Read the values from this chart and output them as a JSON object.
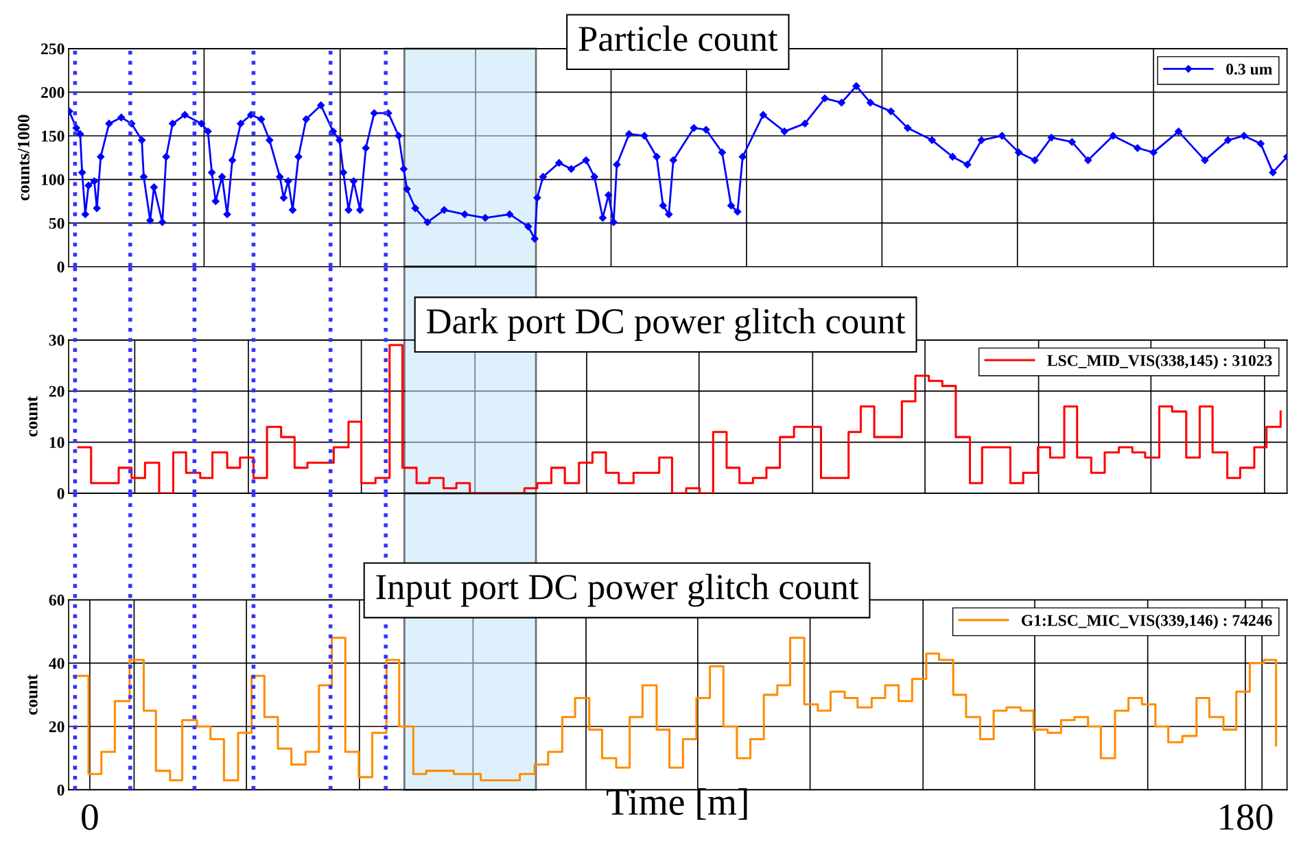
{
  "chart_data": [
    {
      "type": "line",
      "title": "Particle count",
      "ylabel": "counts/1000",
      "xlim": [
        -3.3,
        186.5
      ],
      "ylim": [
        0,
        250
      ],
      "yticks": [
        0,
        50,
        100,
        150,
        200,
        250
      ],
      "xticks": [
        {
          "value": 17.8,
          "label": null
        },
        {
          "value": 39.0,
          "label": null
        },
        {
          "value": 60.1,
          "label": null
        },
        {
          "value": 81.2,
          "label": null
        },
        {
          "value": 102.3,
          "label": null
        },
        {
          "value": 123.4,
          "label": null
        },
        {
          "value": 144.5,
          "label": null
        },
        {
          "value": 165.7,
          "label": null
        }
      ],
      "tick_labels": "y",
      "grid": true,
      "legend": "top right",
      "marker": "diamond",
      "x": [
        -3.2,
        -2.1,
        -1.5,
        -1.2,
        -0.7,
        -0.2,
        0.7,
        1.1,
        1.7,
        3.0,
        4.9,
        6.5,
        8.1,
        8.4,
        9.4,
        10.0,
        11.3,
        11.9,
        12.9,
        14.8,
        17.4,
        18.4,
        19.0,
        19.6,
        20.6,
        21.4,
        22.2,
        23.5,
        25.1,
        26.7,
        28.0,
        29.6,
        30.2,
        30.9,
        31.6,
        32.5,
        33.7,
        36.0,
        37.9,
        38.9,
        39.5,
        40.3,
        41.1,
        42.1,
        43.0,
        44.3,
        46.5,
        48.1,
        48.9,
        49.4,
        50.7,
        52.6,
        55.2,
        58.4,
        61.6,
        65.4,
        68.3,
        69.3,
        69.7,
        70.6,
        73.1,
        75.0,
        77.3,
        78.6,
        79.9,
        80.8,
        81.6,
        82.1,
        84.0,
        86.4,
        88.3,
        89.3,
        90.2,
        90.9,
        94.1,
        96.0,
        98.5,
        99.9,
        100.9,
        101.7,
        104.9,
        108.2,
        111.4,
        114.5,
        117.1,
        119.4,
        121.6,
        124.8,
        127.4,
        131.2,
        134.4,
        136.7,
        138.9,
        142.1,
        144.7,
        147.2,
        149.8,
        153.0,
        155.5,
        159.4,
        163.2,
        165.7,
        169.6,
        173.7,
        177.3,
        179.8,
        182.4,
        184.3,
        186.5
      ],
      "series": [
        {
          "name": "0.3 um",
          "color": "#0000ff",
          "values": [
            178,
            159,
            152,
            108,
            60,
            93,
            98,
            67,
            126,
            164,
            171,
            164,
            145,
            103,
            53,
            91,
            51,
            126,
            164,
            174,
            164,
            155,
            108,
            75,
            103,
            60,
            122,
            164,
            174,
            169,
            145,
            103,
            79,
            98,
            65,
            126,
            169,
            185,
            155,
            145,
            108,
            65,
            98,
            65,
            136,
            176,
            176,
            150,
            112,
            89,
            67,
            51,
            65,
            60,
            56,
            60,
            46,
            32,
            79,
            103,
            119,
            112,
            122,
            103,
            56,
            82,
            51,
            117,
            152,
            150,
            126,
            70,
            60,
            122,
            159,
            157,
            131,
            70,
            63,
            126,
            174,
            155,
            164,
            193,
            188,
            207,
            188,
            178,
            159,
            145,
            126,
            117,
            145,
            150,
            131,
            122,
            148,
            143,
            122,
            150,
            136,
            131,
            155,
            122,
            145,
            150,
            141,
            108,
            126
          ]
        }
      ],
      "bands": [
        {
          "axis": "x",
          "from": 49.0,
          "to": 69.5,
          "color": "#c2e4f8"
        }
      ],
      "ref_lines": [
        {
          "axis": "x",
          "value": -2.3,
          "color": "#3333ff",
          "line_style": "dotted"
        },
        {
          "axis": "x",
          "value": 6.3,
          "color": "#3333ff",
          "line_style": "dotted"
        },
        {
          "axis": "x",
          "value": 16.3,
          "color": "#3333ff",
          "line_style": "dotted"
        },
        {
          "axis": "x",
          "value": 25.5,
          "color": "#3333ff",
          "line_style": "dotted"
        },
        {
          "axis": "x",
          "value": 37.5,
          "color": "#3333ff",
          "line_style": "dotted"
        },
        {
          "axis": "x",
          "value": 46.1,
          "color": "#3333ff",
          "line_style": "dotted"
        }
      ]
    },
    {
      "type": "step",
      "title": "Dark port DC power glitch count",
      "ylabel": "count",
      "xlim": [
        -3.3,
        186.5
      ],
      "ylim": [
        0,
        30
      ],
      "yticks": [
        0,
        10,
        20,
        30
      ],
      "xticks": [
        {
          "value": 7.0,
          "label": null
        },
        {
          "value": 24.7,
          "label": null
        },
        {
          "value": 42.3,
          "label": null
        },
        {
          "value": 60.0,
          "label": null
        },
        {
          "value": 77.4,
          "label": null
        },
        {
          "value": 94.9,
          "label": null
        },
        {
          "value": 112.6,
          "label": null
        },
        {
          "value": 130.1,
          "label": null
        },
        {
          "value": 147.8,
          "label": null
        },
        {
          "value": 165.3,
          "label": null
        },
        {
          "value": 183.0,
          "label": null
        }
      ],
      "tick_labels": "y",
      "grid": true,
      "legend": "top right",
      "x": [
        -1.8,
        0.2,
        4.5,
        6.5,
        8.6,
        10.8,
        13.0,
        15.0,
        17.2,
        19.1,
        21.4,
        23.4,
        25.5,
        27.6,
        29.8,
        31.9,
        33.9,
        38.0,
        40.3,
        42.3,
        44.5,
        46.7,
        48.7,
        50.9,
        52.9,
        55.1,
        57.1,
        59.2,
        67.7,
        69.7,
        71.9,
        74.0,
        76.2,
        78.3,
        80.4,
        82.4,
        84.7,
        88.7,
        90.7,
        92.9,
        95.0,
        97.1,
        99.2,
        101.2,
        103.3,
        105.4,
        107.5,
        109.7,
        113.9,
        118.2,
        120.1,
        122.2,
        126.5,
        128.6,
        130.7,
        132.8,
        134.9,
        137.1,
        139.0,
        143.4,
        145.4,
        147.7,
        149.6,
        151.8,
        153.8,
        156.0,
        158.1,
        160.3,
        162.4,
        164.4,
        166.6,
        168.6,
        170.8,
        172.9,
        174.9,
        177.2,
        179.2,
        181.4,
        183.3,
        185.5
      ],
      "series": [
        {
          "name": "LSC_MID_VIS(338,145) : 31023",
          "color": "#ff0000",
          "values": [
            9,
            2,
            5,
            3,
            6,
            0,
            8,
            4,
            3,
            8,
            5,
            7,
            3,
            13,
            11,
            5,
            6,
            9,
            14,
            2,
            3,
            29,
            5,
            2,
            3,
            1,
            2,
            0,
            1,
            2,
            5,
            2,
            6,
            8,
            4,
            2,
            4,
            7,
            0,
            1,
            0,
            12,
            5,
            2,
            3,
            5,
            11,
            13,
            3,
            12,
            17,
            11,
            18,
            23,
            22,
            21,
            11,
            2,
            9,
            2,
            4,
            9,
            7,
            17,
            7,
            4,
            8,
            9,
            8,
            7,
            17,
            16,
            7,
            17,
            8,
            3,
            5,
            9,
            13,
            16
          ]
        }
      ],
      "bands": [
        {
          "axis": "x",
          "from": 49.0,
          "to": 69.5,
          "color": "#c2e4f8"
        }
      ],
      "ref_lines": [
        {
          "axis": "x",
          "value": -2.3,
          "color": "#3333ff",
          "line_style": "dotted"
        },
        {
          "axis": "x",
          "value": 6.3,
          "color": "#3333ff",
          "line_style": "dotted"
        },
        {
          "axis": "x",
          "value": 16.3,
          "color": "#3333ff",
          "line_style": "dotted"
        },
        {
          "axis": "x",
          "value": 25.5,
          "color": "#3333ff",
          "line_style": "dotted"
        },
        {
          "axis": "x",
          "value": 37.5,
          "color": "#3333ff",
          "line_style": "dotted"
        },
        {
          "axis": "x",
          "value": 46.1,
          "color": "#3333ff",
          "line_style": "dotted"
        }
      ]
    },
    {
      "type": "step",
      "title": "Input port DC power glitch count",
      "ylabel": "count",
      "xlabel": "Time [m]",
      "xlim": [
        -3.3,
        186.5
      ],
      "ylim": [
        0,
        60
      ],
      "yticks": [
        0,
        20,
        40,
        60
      ],
      "xticks": [
        0,
        {
          "value": 6.9,
          "label": null
        },
        {
          "value": 24.4,
          "label": null
        },
        {
          "value": 42.0,
          "label": null
        },
        {
          "value": 59.7,
          "label": null
        },
        {
          "value": 77.3,
          "label": null
        },
        {
          "value": 94.7,
          "label": null
        },
        {
          "value": 112.2,
          "label": null
        },
        {
          "value": 129.8,
          "label": null
        },
        {
          "value": 147.2,
          "label": null
        },
        {
          "value": 164.8,
          "label": null
        },
        180,
        {
          "value": 182.6,
          "label": null
        }
      ],
      "grid": true,
      "legend": "top right",
      "x": [
        -2.5,
        -0.2,
        1.8,
        3.9,
        6.2,
        8.4,
        10.3,
        12.5,
        14.4,
        16.7,
        18.8,
        20.9,
        23.1,
        25.2,
        27.2,
        29.3,
        31.4,
        33.6,
        35.7,
        37.7,
        39.8,
        41.9,
        44.0,
        46.2,
        48.2,
        50.4,
        52.4,
        56.7,
        60.9,
        67.0,
        69.3,
        71.4,
        73.6,
        75.6,
        77.8,
        79.8,
        82.0,
        84.1,
        86.1,
        88.3,
        90.3,
        92.4,
        94.5,
        96.6,
        98.7,
        100.8,
        102.9,
        105.0,
        107.1,
        109.1,
        111.3,
        113.4,
        115.4,
        117.6,
        119.6,
        121.8,
        123.9,
        126.0,
        128.1,
        130.3,
        132.3,
        134.5,
        136.5,
        138.7,
        140.8,
        142.8,
        145.0,
        147.0,
        149.2,
        151.3,
        153.4,
        155.5,
        157.5,
        159.7,
        161.8,
        163.9,
        166.0,
        168.0,
        170.2,
        172.4,
        174.4,
        176.6,
        178.6,
        180.7,
        182.9,
        184.8
      ],
      "series": [
        {
          "name": "G1:LSC_MIC_VIS(339,146) : 74246",
          "color": "#ff8c00",
          "values": [
            36,
            5,
            12,
            28,
            41,
            25,
            6,
            3,
            22,
            20,
            16,
            3,
            18,
            36,
            23,
            13,
            8,
            12,
            33,
            48,
            12,
            4,
            18,
            41,
            20,
            5,
            6,
            5,
            3,
            5,
            8,
            12,
            23,
            29,
            19,
            10,
            7,
            23,
            33,
            19,
            7,
            16,
            29,
            39,
            20,
            10,
            16,
            30,
            33,
            48,
            27,
            25,
            31,
            29,
            26,
            29,
            33,
            28,
            35,
            43,
            41,
            30,
            23,
            16,
            25,
            26,
            25,
            19,
            18,
            22,
            23,
            20,
            10,
            25,
            29,
            27,
            20,
            15,
            17,
            29,
            23,
            19,
            31,
            40,
            41,
            14
          ]
        }
      ],
      "bands": [
        {
          "axis": "x",
          "from": 49.0,
          "to": 69.5,
          "color": "#c2e4f8"
        }
      ],
      "ref_lines": [
        {
          "axis": "x",
          "value": -2.3,
          "color": "#3333ff",
          "line_style": "dotted"
        },
        {
          "axis": "x",
          "value": 6.3,
          "color": "#3333ff",
          "line_style": "dotted"
        },
        {
          "axis": "x",
          "value": 16.3,
          "color": "#3333ff",
          "line_style": "dotted"
        },
        {
          "axis": "x",
          "value": 25.5,
          "color": "#3333ff",
          "line_style": "dotted"
        },
        {
          "axis": "x",
          "value": 37.5,
          "color": "#3333ff",
          "line_style": "dotted"
        },
        {
          "axis": "x",
          "value": 46.1,
          "color": "#3333ff",
          "line_style": "dotted"
        }
      ]
    }
  ]
}
